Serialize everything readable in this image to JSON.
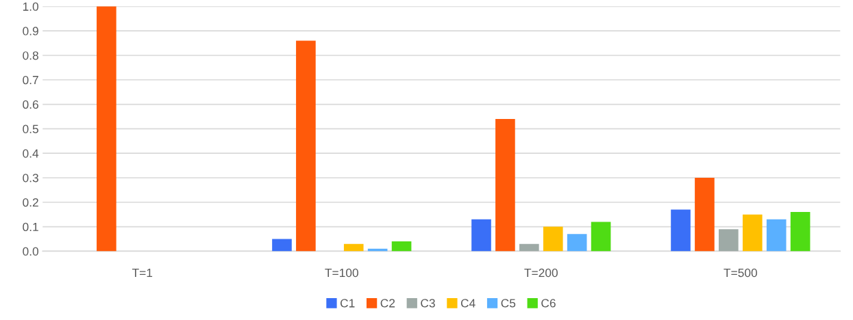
{
  "chart_data": {
    "type": "bar",
    "categories": [
      "T=1",
      "T=100",
      "T=200",
      "T=500"
    ],
    "series": [
      {
        "name": "C1",
        "color": "#3a6ff7",
        "values": [
          0,
          0.05,
          0.13,
          0.17
        ]
      },
      {
        "name": "C2",
        "color": "#ff5a0a",
        "values": [
          1.0,
          0.86,
          0.54,
          0.3
        ]
      },
      {
        "name": "C3",
        "color": "#9eaaa6",
        "values": [
          0,
          0.0,
          0.03,
          0.09
        ]
      },
      {
        "name": "C4",
        "color": "#ffc000",
        "values": [
          0,
          0.03,
          0.1,
          0.15
        ]
      },
      {
        "name": "C5",
        "color": "#5ab0ff",
        "values": [
          0,
          0.01,
          0.07,
          0.13
        ]
      },
      {
        "name": "C6",
        "color": "#4fdc14",
        "values": [
          0,
          0.04,
          0.12,
          0.16
        ]
      }
    ],
    "ylim": [
      0,
      1.0
    ],
    "yticks": [
      {
        "value": 0,
        "label": "0.0"
      },
      {
        "value": 0.1,
        "label": "0.1"
      },
      {
        "value": 0.2,
        "label": "0.2"
      },
      {
        "value": 0.3,
        "label": "0.3"
      },
      {
        "value": 0.4,
        "label": "0.4"
      },
      {
        "value": 0.5,
        "label": "0.5"
      },
      {
        "value": 0.6,
        "label": "0.6"
      },
      {
        "value": 0.7,
        "label": "0.7"
      },
      {
        "value": 0.8,
        "label": "0.8"
      },
      {
        "value": 0.9,
        "label": "0.9"
      },
      {
        "value": 1.0,
        "label": "1.0"
      }
    ],
    "grid": "y",
    "legend": "bottom"
  }
}
